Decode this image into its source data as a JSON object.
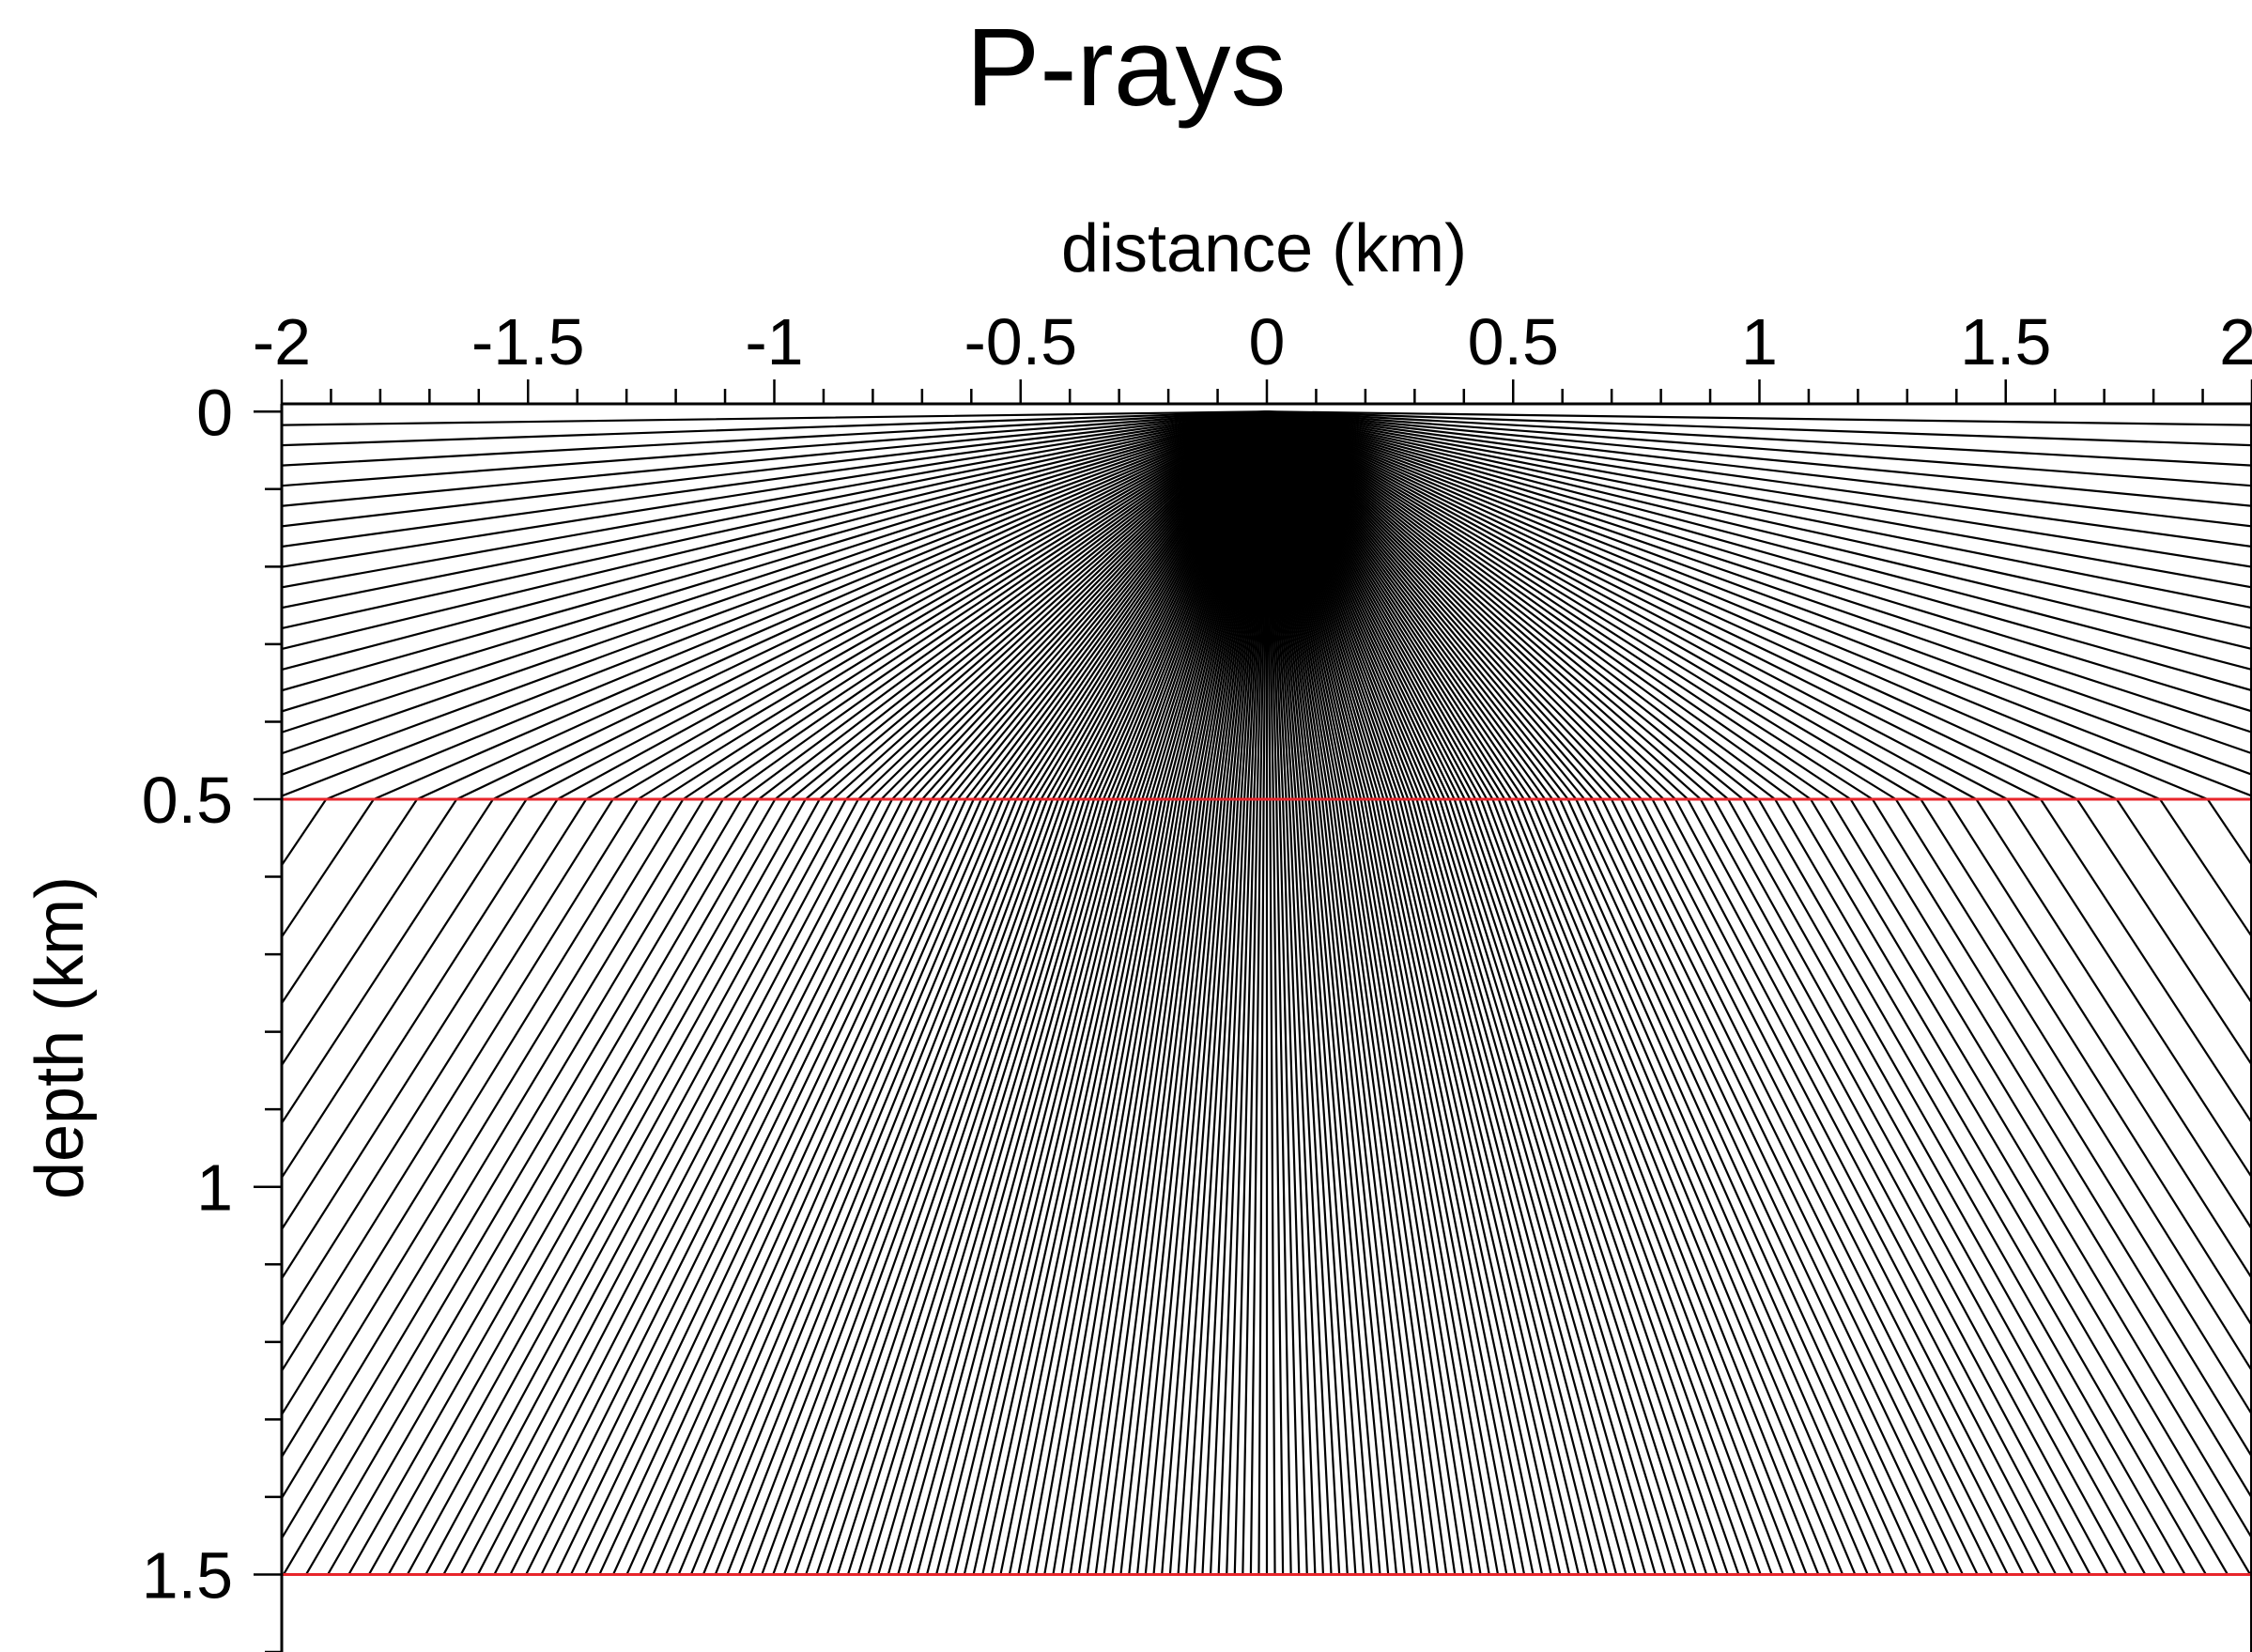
{
  "chart_data": {
    "type": "line",
    "title": "P-rays",
    "xlabel": "distance (km)",
    "ylabel": "depth (km)",
    "xlim": [
      -2,
      2
    ],
    "ylim": [
      -0.01,
      1.6
    ],
    "y_inverted": true,
    "x_axis_position": "top",
    "grid": false,
    "legend": "none",
    "x_ticks": [
      {
        "value": -2,
        "label": "-2"
      },
      {
        "value": -1.5,
        "label": "-1.5"
      },
      {
        "value": -1,
        "label": "-1"
      },
      {
        "value": -0.5,
        "label": "-0.5"
      },
      {
        "value": 0,
        "label": "0"
      },
      {
        "value": 0.5,
        "label": "0.5"
      },
      {
        "value": 1,
        "label": "1"
      },
      {
        "value": 1.5,
        "label": "1.5"
      },
      {
        "value": 2,
        "label": "2"
      }
    ],
    "x_minor_step": 0.1,
    "y_ticks": [
      {
        "value": 0,
        "label": "0"
      },
      {
        "value": 0.5,
        "label": "0.5"
      },
      {
        "value": 1,
        "label": "1"
      },
      {
        "value": 1.5,
        "label": "1.5"
      }
    ],
    "y_minor_step": 0.1,
    "source": {
      "x": 0,
      "y": 0
    },
    "interfaces": [
      {
        "depth": 0.5,
        "color": "#e8252b"
      },
      {
        "depth": 1.5,
        "color": "#e8252b"
      }
    ],
    "layer_velocity_ratio": 1.33,
    "rays": {
      "count": 241,
      "takeoff_angle_min_deg": -89.5,
      "takeoff_angle_max_deg": 89.5,
      "color": "#000000"
    },
    "colors": {
      "ray": "#000000",
      "interface": "#e8252b",
      "axis": "#000000",
      "background": "#ffffff"
    }
  }
}
